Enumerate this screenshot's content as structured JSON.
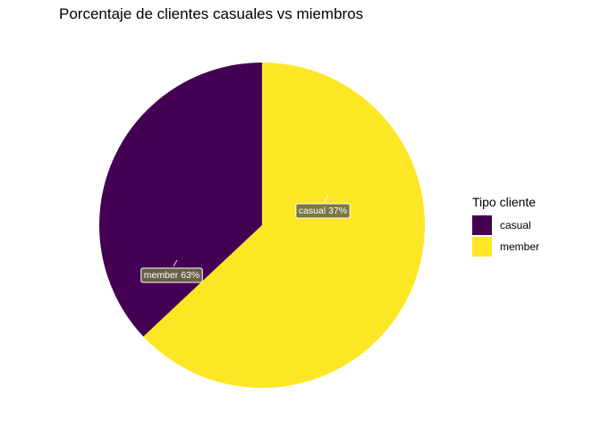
{
  "chart_data": {
    "type": "pie",
    "title": "Porcentaje de clientes casuales vs miembros",
    "slices": [
      {
        "category": "casual",
        "value": 37,
        "label": "casual 37%",
        "color": "#440154"
      },
      {
        "category": "member",
        "value": 63,
        "label": "member 63%",
        "color": "#FDE725"
      }
    ],
    "legend": {
      "title": "Tipo cliente",
      "placement": "right",
      "entries": [
        {
          "label": "casual",
          "color": "#440154"
        },
        {
          "label": "member",
          "color": "#FDE725"
        }
      ]
    },
    "grid": false
  }
}
